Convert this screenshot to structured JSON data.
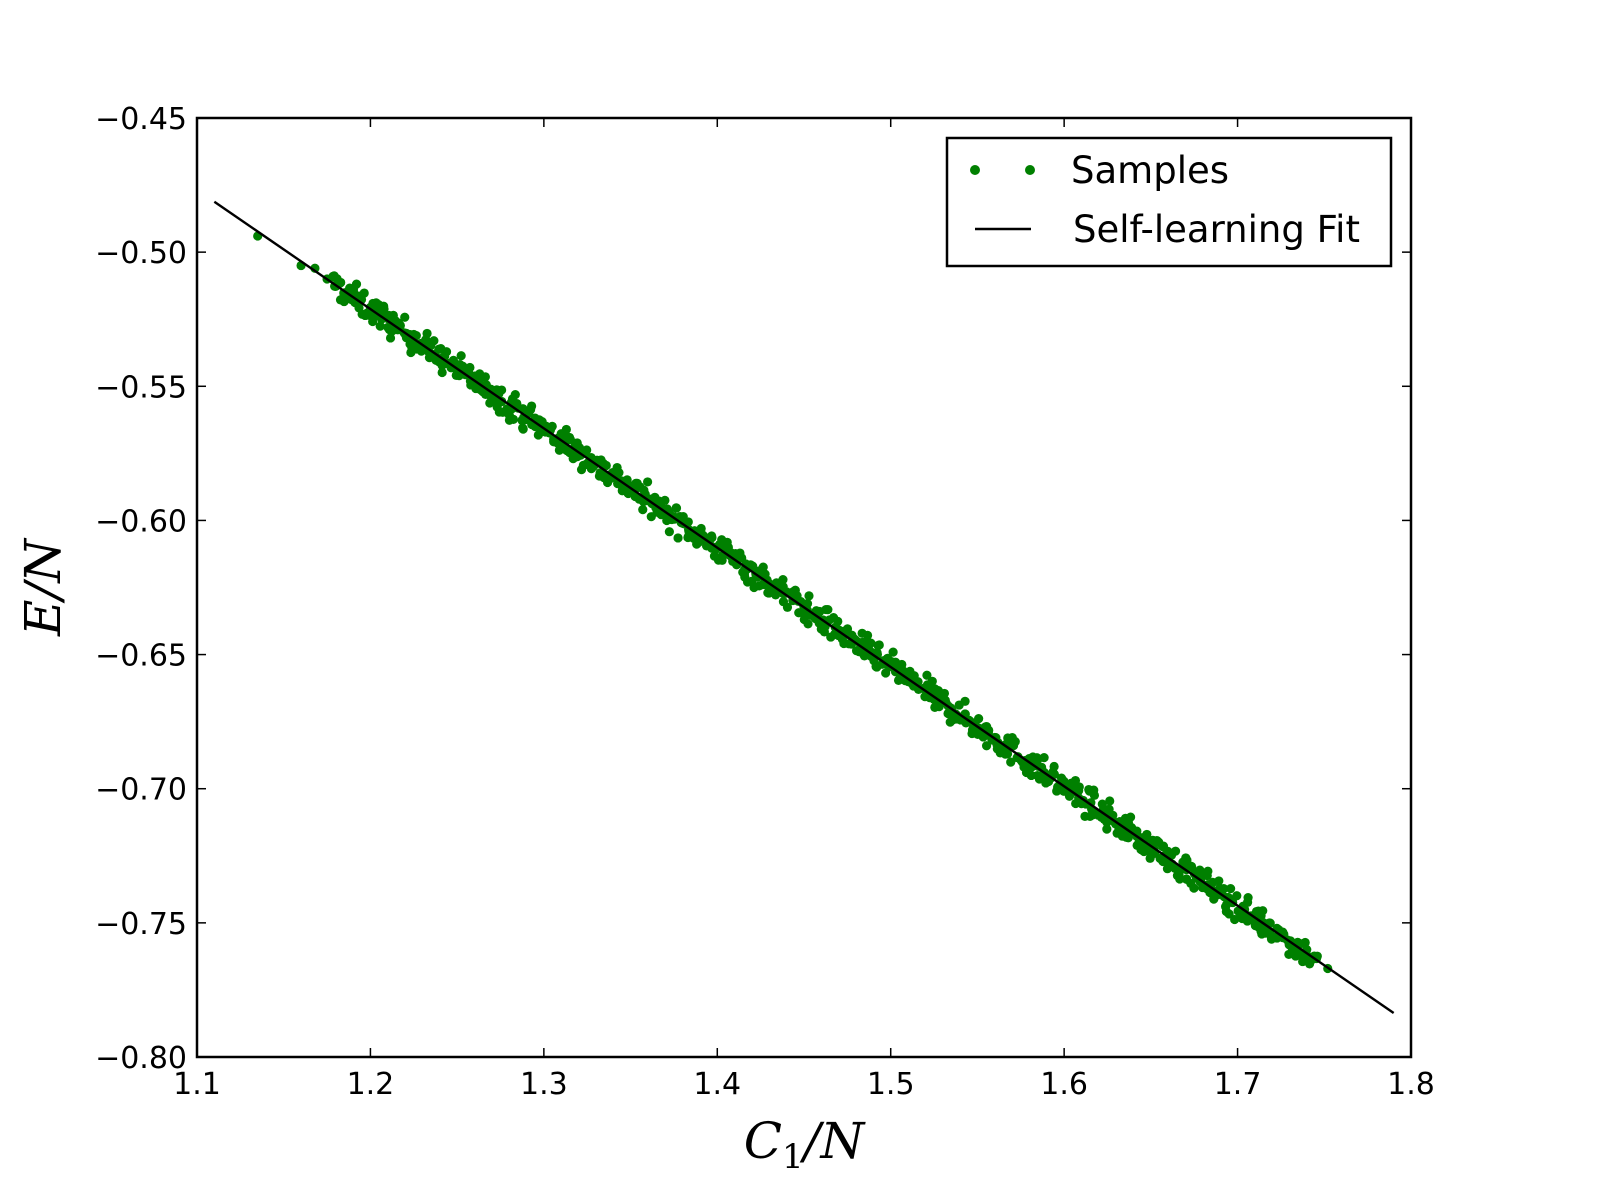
{
  "chart_data": {
    "type": "scatter",
    "title": "",
    "xlabel": {
      "main": "C",
      "sub": "1",
      "rest": "/N"
    },
    "ylabel": "E/N",
    "xlim": [
      1.1,
      1.8
    ],
    "ylim": [
      -0.8,
      -0.45
    ],
    "xticks": [
      1.1,
      1.2,
      1.3,
      1.4,
      1.5,
      1.6,
      1.7,
      1.8
    ],
    "xtick_labels": [
      "1.1",
      "1.2",
      "1.3",
      "1.4",
      "1.5",
      "1.6",
      "1.7",
      "1.8"
    ],
    "yticks": [
      -0.45,
      -0.5,
      -0.55,
      -0.6,
      -0.65,
      -0.7,
      -0.75,
      -0.8
    ],
    "ytick_labels": [
      "−0.45",
      "−0.50",
      "−0.55",
      "−0.60",
      "−0.65",
      "−0.70",
      "−0.75",
      "−0.80"
    ],
    "grid": false,
    "legend_position": "top-right",
    "series": [
      {
        "name": "Samples",
        "kind": "scatter",
        "color": "#008000",
        "x_range": [
          1.135,
          1.752
        ],
        "fit": {
          "slope": -0.4447,
          "intercept": 0.0124
        },
        "spread": 0.0025,
        "count": 900,
        "outliers": [
          [
            1.135,
            -0.494
          ],
          [
            1.16,
            -0.505
          ],
          [
            1.168,
            -0.506
          ],
          [
            1.175,
            -0.51
          ]
        ]
      },
      {
        "name": "Self-learning Fit",
        "kind": "line",
        "color": "#000000",
        "x": [
          1.11,
          1.79
        ],
        "y": [
          -0.4812,
          -0.7836
        ]
      }
    ]
  }
}
